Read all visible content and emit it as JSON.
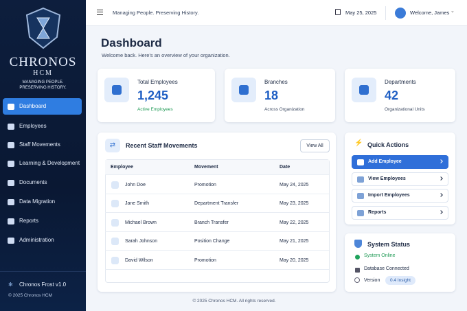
{
  "sidebar": {
    "brand": "CHRONOS",
    "brand_sub": "HCM",
    "tagline": "MANAGING PEOPLE. PRESERVING HISTORY.",
    "nav": [
      "Dashboard",
      "Employees",
      "Staff Movements",
      "Learning & Development",
      "Documents",
      "Data Migration",
      "Reports",
      "Administration"
    ],
    "version": "Chronos Frost v1.0",
    "copyright": "© 2025 Chronos HCM"
  },
  "topbar": {
    "tagline": "Managing People. Preserving History.",
    "date": "May 25, 2025",
    "user": "Welcome, James"
  },
  "header": {
    "title": "Dashboard",
    "subtitle": "Welcome back. Here's an overview of your organization."
  },
  "stats": [
    {
      "label": "Total Employees",
      "value": "1,245",
      "note": "Active Employees"
    },
    {
      "label": "Branches",
      "value": "18",
      "note": "Across Organization"
    },
    {
      "label": "Departments",
      "value": "42",
      "note": "Organizational Units"
    }
  ],
  "movements": {
    "title": "Recent Staff Movements",
    "button": "View All",
    "columns": [
      "Employee",
      "Movement",
      "Date"
    ],
    "rows": [
      [
        "John Doe",
        "Promotion",
        "May 24, 2025"
      ],
      [
        "Jane Smith",
        "Department Transfer",
        "May 23, 2025"
      ],
      [
        "Michael Brown",
        "Branch Transfer",
        "May 22, 2025"
      ],
      [
        "Sarah Johnson",
        "Position Change",
        "May 21, 2025"
      ],
      [
        "David Wilson",
        "Promotion",
        "May 20, 2025"
      ]
    ]
  },
  "quick_actions": {
    "title": "Quick Actions",
    "items": [
      "Add Employee",
      "View Employees",
      "Import Employees",
      "Reports"
    ]
  },
  "status": {
    "title": "System Status",
    "items": [
      "System Online",
      "Database Connected"
    ],
    "version_label": "Version",
    "version": "0.4 Insight"
  },
  "footer": "© 2025 Chronos HCM. All rights reserved."
}
